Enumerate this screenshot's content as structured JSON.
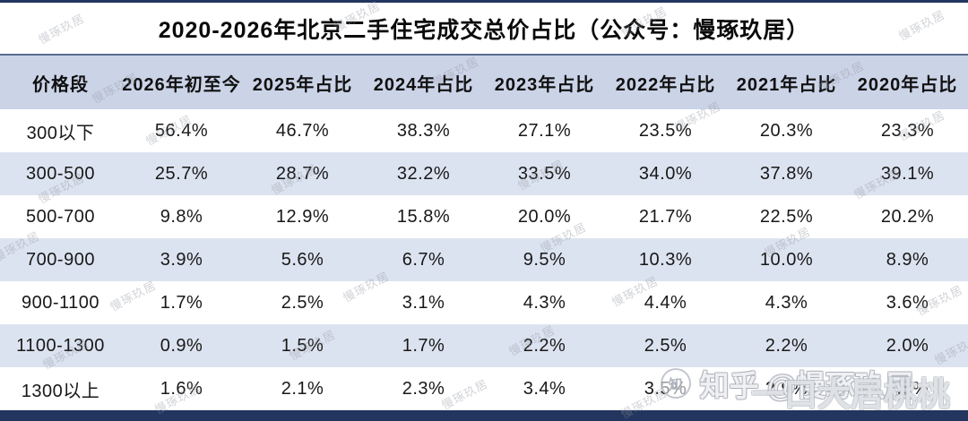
{
  "watermark": {
    "text": "慢琢玖居"
  },
  "zhihu": {
    "brand_label": "知乎 @慢琢玖居",
    "logo_glyph": "知",
    "ghost_label": "一口大居桃桃"
  },
  "colors": {
    "accent_navy": "#23365f",
    "header_bg": "#cbd3e7",
    "alt_row_bg": "#dce3f0"
  },
  "chart_data": {
    "type": "table",
    "title": "2020-2026年北京二手住宅成交总价占比（公众号：慢琢玖居）",
    "columns": [
      "价格段",
      "2026年初至今",
      "2025年占比",
      "2024年占比",
      "2023年占比",
      "2022年占比",
      "2021年占比",
      "2020年占比"
    ],
    "rows": [
      [
        "300以下",
        "56.4%",
        "46.7%",
        "38.3%",
        "27.1%",
        "23.5%",
        "20.3%",
        "23.3%"
      ],
      [
        "300-500",
        "25.7%",
        "28.7%",
        "32.2%",
        "33.5%",
        "34.0%",
        "37.8%",
        "39.1%"
      ],
      [
        "500-700",
        "9.8%",
        "12.9%",
        "15.8%",
        "20.0%",
        "21.7%",
        "22.5%",
        "20.2%"
      ],
      [
        "700-900",
        "3.9%",
        "5.6%",
        "6.7%",
        "9.5%",
        "10.3%",
        "10.0%",
        "8.9%"
      ],
      [
        "900-1100",
        "1.7%",
        "2.5%",
        "3.1%",
        "4.3%",
        "4.4%",
        "4.3%",
        "3.6%"
      ],
      [
        "1100-1300",
        "0.9%",
        "1.5%",
        "1.7%",
        "2.2%",
        "2.5%",
        "2.2%",
        "2.0%"
      ],
      [
        "1300以上",
        "1.6%",
        "2.1%",
        "2.3%",
        "3.4%",
        "3.5%",
        "2.9%",
        "2.8%"
      ]
    ]
  }
}
